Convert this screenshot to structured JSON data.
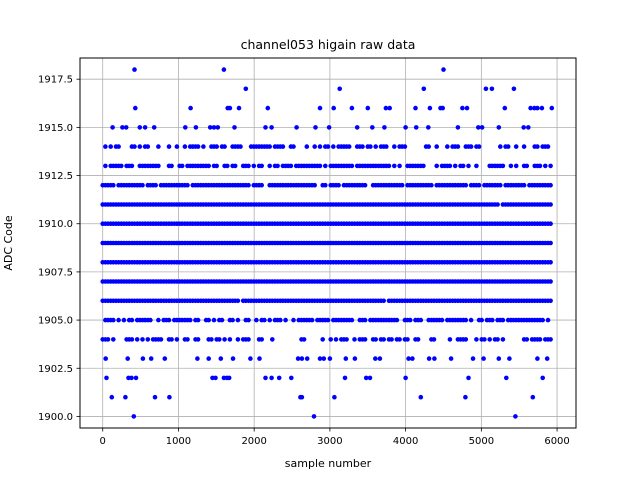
{
  "chart_data": {
    "type": "scatter",
    "title": "channel053 higain raw data",
    "xlabel": "sample number",
    "ylabel": "ADC Code",
    "xlim": [
      -300,
      6250
    ],
    "ylim": [
      1899.4,
      1918.6
    ],
    "xticks": [
      0,
      1000,
      2000,
      3000,
      4000,
      5000,
      6000
    ],
    "yticks": [
      1900.0,
      1902.5,
      1905.0,
      1907.5,
      1910.0,
      1912.5,
      1915.0,
      1917.5
    ],
    "xtick_labels": [
      "0",
      "1000",
      "2000",
      "3000",
      "4000",
      "5000",
      "6000"
    ],
    "ytick_labels": [
      "1900.0",
      "1902.5",
      "1905.0",
      "1907.5",
      "1910.0",
      "1912.5",
      "1915.0",
      "1917.5"
    ],
    "grid": true,
    "marker_color": "#0000ff",
    "x_range": [
      0,
      5920
    ],
    "dense_levels": [
      1904,
      1905,
      1906,
      1907,
      1908,
      1909,
      1910,
      1911,
      1912,
      1913,
      1914
    ],
    "level_density": {
      "1904": 0.45,
      "1905": 0.75,
      "1906": 0.97,
      "1907": 1.0,
      "1908": 1.0,
      "1909": 1.0,
      "1910": 1.0,
      "1911": 0.98,
      "1912": 0.9,
      "1913": 0.65,
      "1914": 0.45
    },
    "sparse_points": [
      {
        "x": 420,
        "y": 1918
      },
      {
        "x": 1600,
        "y": 1918
      },
      {
        "x": 4500,
        "y": 1918
      },
      {
        "x": 1890,
        "y": 1917
      },
      {
        "x": 3130,
        "y": 1917
      },
      {
        "x": 4240,
        "y": 1917
      },
      {
        "x": 5060,
        "y": 1917
      },
      {
        "x": 5140,
        "y": 1917
      },
      {
        "x": 5430,
        "y": 1917
      },
      {
        "x": 430,
        "y": 1916
      },
      {
        "x": 1160,
        "y": 1916
      },
      {
        "x": 1650,
        "y": 1916
      },
      {
        "x": 1680,
        "y": 1916
      },
      {
        "x": 1800,
        "y": 1916
      },
      {
        "x": 2180,
        "y": 1916
      },
      {
        "x": 2870,
        "y": 1916
      },
      {
        "x": 3050,
        "y": 1916
      },
      {
        "x": 3290,
        "y": 1916
      },
      {
        "x": 3500,
        "y": 1916
      },
      {
        "x": 3740,
        "y": 1916
      },
      {
        "x": 3790,
        "y": 1916
      },
      {
        "x": 4130,
        "y": 1916
      },
      {
        "x": 4320,
        "y": 1916
      },
      {
        "x": 4460,
        "y": 1916
      },
      {
        "x": 4490,
        "y": 1916
      },
      {
        "x": 4750,
        "y": 1916
      },
      {
        "x": 4810,
        "y": 1916
      },
      {
        "x": 5310,
        "y": 1916
      },
      {
        "x": 5650,
        "y": 1916
      },
      {
        "x": 5700,
        "y": 1916
      },
      {
        "x": 5740,
        "y": 1916
      },
      {
        "x": 5800,
        "y": 1916
      },
      {
        "x": 5930,
        "y": 1916
      },
      {
        "x": 130,
        "y": 1915
      },
      {
        "x": 260,
        "y": 1915
      },
      {
        "x": 310,
        "y": 1915
      },
      {
        "x": 490,
        "y": 1915
      },
      {
        "x": 560,
        "y": 1915
      },
      {
        "x": 680,
        "y": 1915
      },
      {
        "x": 1090,
        "y": 1915
      },
      {
        "x": 1230,
        "y": 1915
      },
      {
        "x": 1420,
        "y": 1915
      },
      {
        "x": 1470,
        "y": 1915
      },
      {
        "x": 1520,
        "y": 1915
      },
      {
        "x": 1740,
        "y": 1915
      },
      {
        "x": 2150,
        "y": 1915
      },
      {
        "x": 2230,
        "y": 1915
      },
      {
        "x": 2560,
        "y": 1915
      },
      {
        "x": 2810,
        "y": 1915
      },
      {
        "x": 2990,
        "y": 1915
      },
      {
        "x": 3360,
        "y": 1915
      },
      {
        "x": 3560,
        "y": 1915
      },
      {
        "x": 3720,
        "y": 1915
      },
      {
        "x": 4000,
        "y": 1915
      },
      {
        "x": 4140,
        "y": 1915
      },
      {
        "x": 4300,
        "y": 1915
      },
      {
        "x": 4690,
        "y": 1915
      },
      {
        "x": 4960,
        "y": 1915
      },
      {
        "x": 5010,
        "y": 1915
      },
      {
        "x": 5230,
        "y": 1915
      },
      {
        "x": 5560,
        "y": 1915
      },
      {
        "x": 5620,
        "y": 1915
      },
      {
        "x": 40,
        "y": 1903
      },
      {
        "x": 330,
        "y": 1903
      },
      {
        "x": 530,
        "y": 1903
      },
      {
        "x": 640,
        "y": 1903
      },
      {
        "x": 820,
        "y": 1903
      },
      {
        "x": 1250,
        "y": 1903
      },
      {
        "x": 1400,
        "y": 1903
      },
      {
        "x": 1560,
        "y": 1903
      },
      {
        "x": 1720,
        "y": 1903
      },
      {
        "x": 1950,
        "y": 1903
      },
      {
        "x": 2070,
        "y": 1903
      },
      {
        "x": 2580,
        "y": 1903
      },
      {
        "x": 2630,
        "y": 1903
      },
      {
        "x": 2700,
        "y": 1903
      },
      {
        "x": 2870,
        "y": 1903
      },
      {
        "x": 2920,
        "y": 1903
      },
      {
        "x": 3000,
        "y": 1903
      },
      {
        "x": 3210,
        "y": 1903
      },
      {
        "x": 3330,
        "y": 1903
      },
      {
        "x": 3600,
        "y": 1903
      },
      {
        "x": 3660,
        "y": 1903
      },
      {
        "x": 4040,
        "y": 1903
      },
      {
        "x": 4090,
        "y": 1903
      },
      {
        "x": 4310,
        "y": 1903
      },
      {
        "x": 4380,
        "y": 1903
      },
      {
        "x": 4600,
        "y": 1903
      },
      {
        "x": 4890,
        "y": 1903
      },
      {
        "x": 5030,
        "y": 1903
      },
      {
        "x": 5230,
        "y": 1903
      },
      {
        "x": 5370,
        "y": 1903
      },
      {
        "x": 5740,
        "y": 1903
      },
      {
        "x": 5870,
        "y": 1903
      },
      {
        "x": 50,
        "y": 1902
      },
      {
        "x": 340,
        "y": 1902
      },
      {
        "x": 380,
        "y": 1902
      },
      {
        "x": 440,
        "y": 1902
      },
      {
        "x": 1450,
        "y": 1902
      },
      {
        "x": 1490,
        "y": 1902
      },
      {
        "x": 1600,
        "y": 1902
      },
      {
        "x": 1640,
        "y": 1902
      },
      {
        "x": 1670,
        "y": 1902
      },
      {
        "x": 2150,
        "y": 1902
      },
      {
        "x": 2230,
        "y": 1902
      },
      {
        "x": 2330,
        "y": 1902
      },
      {
        "x": 2490,
        "y": 1902
      },
      {
        "x": 3200,
        "y": 1902
      },
      {
        "x": 3480,
        "y": 1902
      },
      {
        "x": 3530,
        "y": 1902
      },
      {
        "x": 4000,
        "y": 1902
      },
      {
        "x": 4830,
        "y": 1902
      },
      {
        "x": 5330,
        "y": 1902
      },
      {
        "x": 5810,
        "y": 1902
      },
      {
        "x": 120,
        "y": 1901
      },
      {
        "x": 300,
        "y": 1901
      },
      {
        "x": 690,
        "y": 1901
      },
      {
        "x": 880,
        "y": 1901
      },
      {
        "x": 2610,
        "y": 1901
      },
      {
        "x": 2630,
        "y": 1901
      },
      {
        "x": 3060,
        "y": 1901
      },
      {
        "x": 4200,
        "y": 1901
      },
      {
        "x": 4790,
        "y": 1901
      },
      {
        "x": 5680,
        "y": 1901
      },
      {
        "x": 410,
        "y": 1900
      },
      {
        "x": 2790,
        "y": 1900
      },
      {
        "x": 5450,
        "y": 1900
      }
    ]
  }
}
